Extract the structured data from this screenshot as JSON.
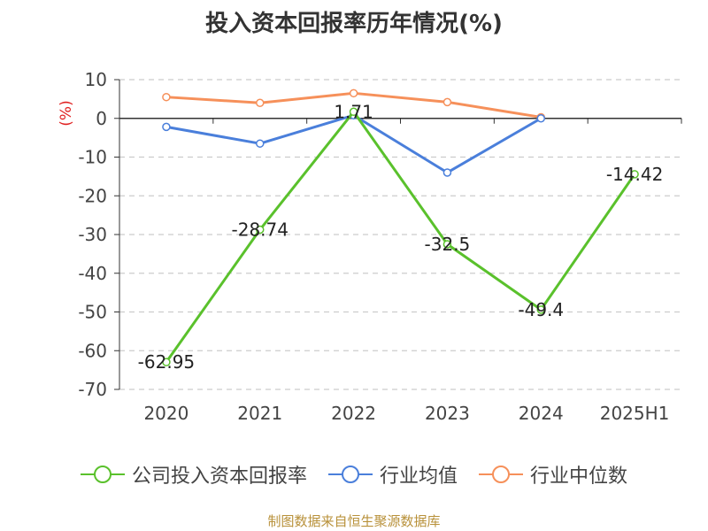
{
  "title": "投入资本回报率历年情况(%)",
  "source": "制图数据来自恒生聚源数据库",
  "chart_data": {
    "type": "line",
    "title": "投入资本回报率历年情况(%)",
    "ylabel": "(%)",
    "xlabel": "",
    "categories": [
      "2020",
      "2021",
      "2022",
      "2023",
      "2024",
      "2025H1"
    ],
    "ylim": [
      -70,
      10
    ],
    "yticks": [
      10,
      0,
      -10,
      -20,
      -30,
      -40,
      -50,
      -60,
      -70
    ],
    "grid": true,
    "legend_position": "bottom",
    "series": [
      {
        "name": "公司投入资本回报率",
        "color": "#5ac12c",
        "values": [
          -62.95,
          -28.74,
          1.71,
          -32.5,
          -49.4,
          -14.42
        ],
        "labels": [
          "-62.95",
          "-28.74",
          "1.71",
          "-32.5",
          "-49.4",
          "-14.42"
        ]
      },
      {
        "name": "行业均值",
        "color": "#4a7fdb",
        "values": [
          -2.2,
          -6.5,
          0.8,
          -14.0,
          0.0,
          null
        ]
      },
      {
        "name": "行业中位数",
        "color": "#f6905a",
        "values": [
          5.5,
          4.0,
          6.5,
          4.2,
          0.3,
          null
        ]
      }
    ]
  }
}
